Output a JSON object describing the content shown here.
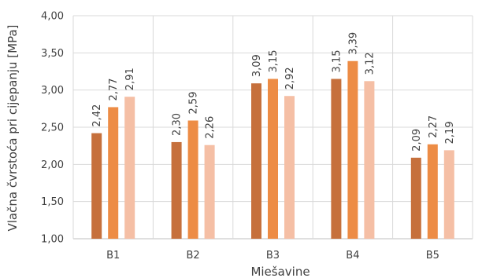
{
  "chart_data": {
    "type": "bar",
    "categories": [
      "B1",
      "B2",
      "B3",
      "B4",
      "B5"
    ],
    "series": [
      {
        "values": [
          2.42,
          2.3,
          3.09,
          3.15,
          2.09
        ],
        "labels": [
          "2,42",
          "2,30",
          "3,09",
          "3,15",
          "2,09"
        ],
        "color": "#c6703c"
      },
      {
        "values": [
          2.77,
          2.59,
          3.15,
          3.39,
          2.27
        ],
        "labels": [
          "2,77",
          "2,59",
          "3,15",
          "3,39",
          "2,27"
        ],
        "color": "#ed8c45"
      },
      {
        "values": [
          2.91,
          2.26,
          2.92,
          3.12,
          2.19
        ],
        "labels": [
          "2,91",
          "2,26",
          "2,92",
          "3,12",
          "2,19"
        ],
        "color": "#f5bfa5"
      }
    ],
    "xlabel": "Miešavine",
    "ylabel": "Vlačna čvrstoća pri cijepanju [MPa]",
    "ylim": [
      1.0,
      4.0
    ],
    "yticks": [
      1.0,
      1.5,
      2.0,
      2.5,
      3.0,
      3.5,
      4.0
    ],
    "ytick_labels": [
      "1,00",
      "1,50",
      "2,00",
      "2,50",
      "3,00",
      "3,50",
      "4,00"
    ],
    "grid": true,
    "legend": "none"
  }
}
